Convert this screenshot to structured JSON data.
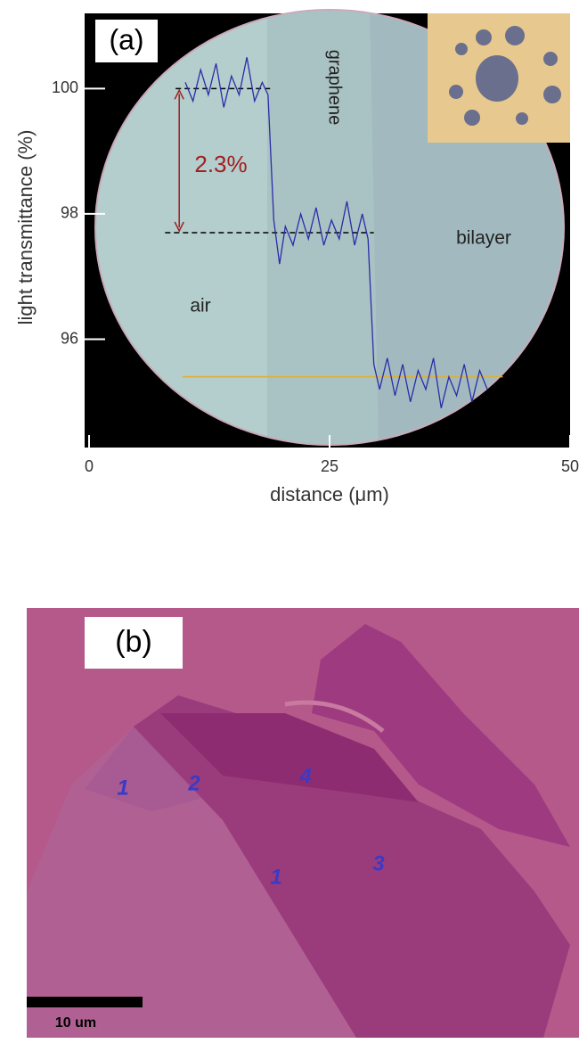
{
  "chart_data": {
    "type": "line",
    "panel_label": "(a)",
    "x_label": "distance (μm)",
    "y_label": "light transmittance (%)",
    "region_labels": [
      "graphene",
      "bilayer",
      "air"
    ],
    "step_label": "2.3%",
    "xlim": [
      0,
      50
    ],
    "xticks": [
      0,
      25,
      50
    ],
    "ylim": [
      94.3,
      101.2
    ],
    "yticks": [
      96,
      98,
      100
    ],
    "series": [
      {
        "color": "#2c2ca8",
        "x": [
          10,
          10.8,
          11.6,
          12.4,
          13.2,
          14,
          14.8,
          15.6,
          16.4,
          17.2,
          18,
          18.6,
          19.2,
          19.8,
          20.4,
          21.2,
          22,
          22.8,
          23.6,
          24.4,
          25.2,
          26,
          26.8,
          27.6,
          28.4,
          29,
          29.6,
          30.2,
          31,
          31.8,
          32.6,
          33.4,
          34.2,
          35,
          35.8,
          36.6,
          37.4,
          38.2,
          39,
          39.8,
          40.6,
          41.4
        ],
        "values": [
          100.1,
          99.8,
          100.3,
          99.9,
          100.4,
          99.7,
          100.2,
          99.9,
          100.5,
          99.8,
          100.1,
          99.9,
          97.9,
          97.2,
          97.8,
          97.5,
          98.0,
          97.6,
          98.1,
          97.5,
          97.9,
          97.6,
          98.2,
          97.5,
          98.0,
          97.6,
          95.6,
          95.2,
          95.7,
          95.1,
          95.6,
          95.0,
          95.5,
          95.2,
          95.7,
          94.9,
          95.4,
          95.1,
          95.6,
          95.0,
          95.5,
          95.2
        ]
      }
    ],
    "reference_lines": [
      {
        "value": 100,
        "x": [
          9,
          19
        ],
        "color": "#000000",
        "dashed": true
      },
      {
        "value": 97.7,
        "x": [
          7.9,
          29.6
        ],
        "color": "#000000",
        "dashed": true
      },
      {
        "value": 95.4,
        "x": [
          9.7,
          43
        ],
        "color": "#e0b030",
        "dashed": false
      }
    ]
  },
  "panel_b": {
    "panel_label": "(b)",
    "layer_labels": [
      "1",
      "2",
      "4",
      "1",
      "3"
    ],
    "scale_bar": "10 um"
  }
}
